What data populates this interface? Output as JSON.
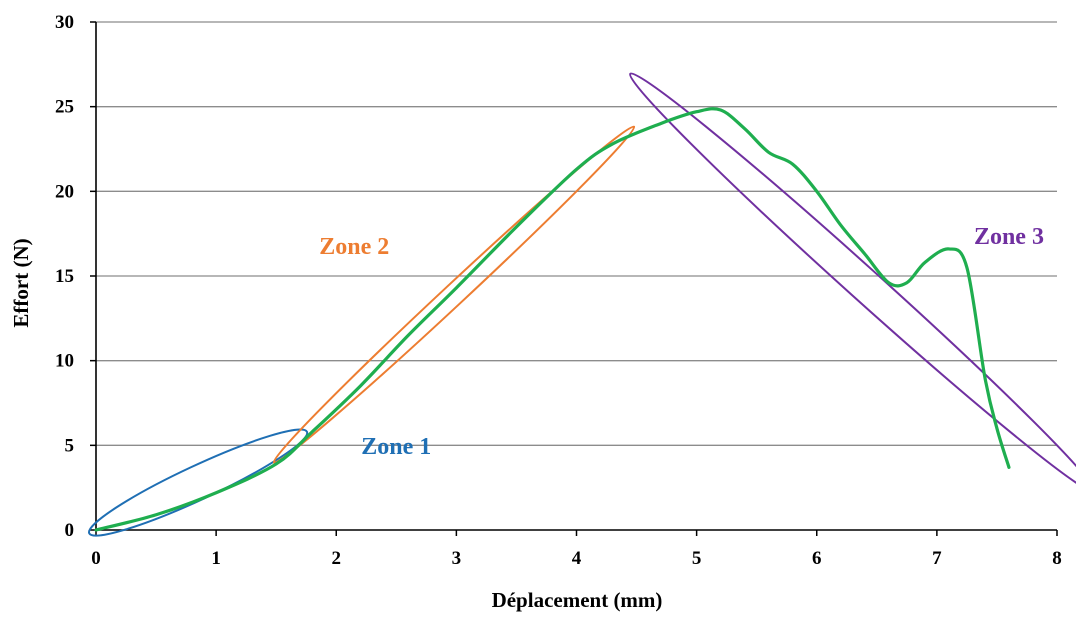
{
  "chart_data": {
    "type": "line",
    "xlabel": "Déplacement (mm)",
    "ylabel": "Effort  (N)",
    "xlim": [
      0,
      8
    ],
    "ylim": [
      0,
      30
    ],
    "x_ticks": [
      "0",
      "1",
      "2",
      "3",
      "4",
      "5",
      "6",
      "7",
      "8"
    ],
    "y_ticks": [
      "0",
      "5",
      "10",
      "15",
      "20",
      "25",
      "30"
    ],
    "grid": "horizontal",
    "series": [
      {
        "color": "#1fae4f",
        "points": [
          [
            0,
            0
          ],
          [
            0.5,
            0.9
          ],
          [
            1.0,
            2.2
          ],
          [
            1.5,
            3.9
          ],
          [
            1.8,
            5.8
          ],
          [
            2.2,
            8.5
          ],
          [
            2.6,
            11.5
          ],
          [
            3.0,
            14.3
          ],
          [
            3.5,
            17.9
          ],
          [
            4.0,
            21.3
          ],
          [
            4.3,
            22.8
          ],
          [
            4.7,
            24.0
          ],
          [
            5.0,
            24.7
          ],
          [
            5.2,
            24.8
          ],
          [
            5.4,
            23.7
          ],
          [
            5.6,
            22.3
          ],
          [
            5.8,
            21.6
          ],
          [
            6.0,
            20.0
          ],
          [
            6.2,
            18.0
          ],
          [
            6.4,
            16.3
          ],
          [
            6.6,
            14.6
          ],
          [
            6.75,
            14.6
          ],
          [
            6.9,
            15.8
          ],
          [
            7.1,
            16.6
          ],
          [
            7.25,
            15.5
          ],
          [
            7.4,
            9.0
          ],
          [
            7.5,
            6.0
          ],
          [
            7.6,
            3.7
          ]
        ]
      }
    ],
    "annotations": [
      {
        "text": "Zone 1",
        "color": "#1f6fb4",
        "label_at": [
          2.5,
          4.5
        ],
        "ellipse": {
          "cx": 0.85,
          "cy": 2.8,
          "rx": 1.0,
          "ry": 1.0,
          "angle_deg": -25
        }
      },
      {
        "text": "Zone 2",
        "color": "#ed7d31",
        "label_at": [
          2.15,
          16.3
        ],
        "ellipse": {
          "cx": 2.98,
          "cy": 13.9,
          "rx": 2.05,
          "ry": 0.62,
          "angle_deg": -43
        }
      },
      {
        "text": "Zone 3",
        "color": "#7030a0",
        "label_at": [
          7.6,
          16.9
        ],
        "ellipse": {
          "cx": 6.38,
          "cy": 14.6,
          "rx": 2.6,
          "ry": 0.95,
          "angle_deg": 42
        }
      }
    ]
  }
}
